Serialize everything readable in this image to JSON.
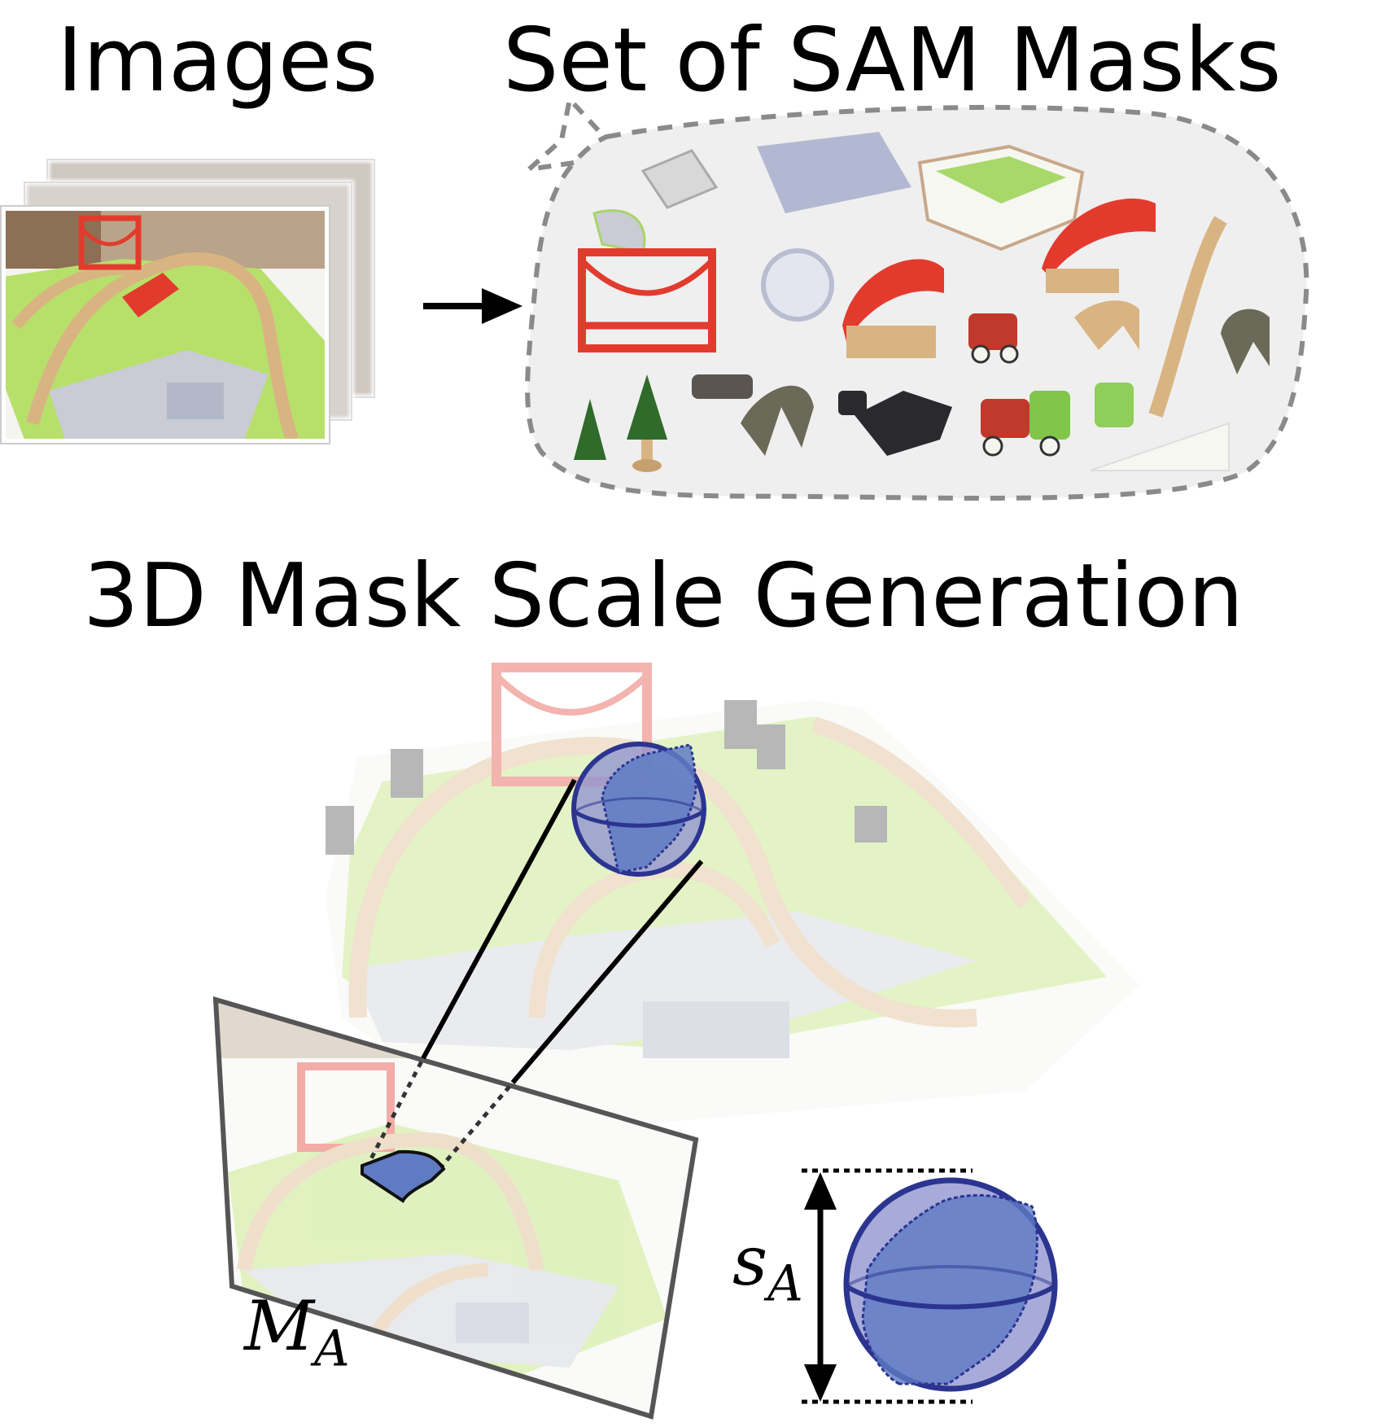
{
  "titles": {
    "images": "Images",
    "sam_masks": "Set of SAM Masks",
    "generation": "3D Mask Scale Generation"
  },
  "labels": {
    "mask_symbol": "M",
    "mask_subscript": "A",
    "scale_symbol": "s",
    "scale_subscript": "A"
  },
  "colors": {
    "sphere_fill": "#8f93cf",
    "sphere_stroke": "#2b3590",
    "mask_fill": "#5f7bc4",
    "dashed_outline": "#8a8a8a",
    "cloud_fill": "#efefef",
    "table_green": "#b7e06a",
    "bridge_red": "#e23b2e",
    "track_wood": "#d9b483",
    "road_gray": "#c9ccd4"
  },
  "icons": [
    "arrow-right-icon",
    "double-arrow-icon",
    "sphere-icon",
    "mask-patch-icon"
  ]
}
